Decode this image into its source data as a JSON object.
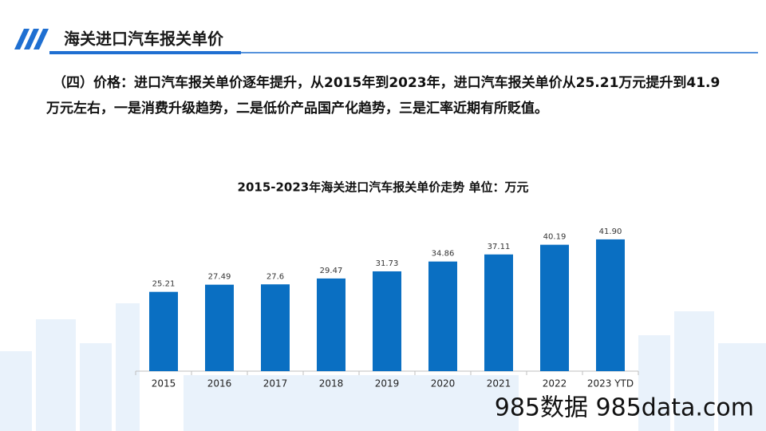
{
  "header": {
    "title": "海关进口汽车报关单价"
  },
  "paragraph": "（四）价格：进口汽车报关单价逐年提升，从2015年到2023年，进口汽车报关单价从25.21万元提升到41.9万元左右，一是消费升级趋势，二是低价产品国产化趋势，三是汇率近期有所贬值。",
  "chart_data": {
    "type": "bar",
    "title": "2015-2023年海关进口汽车报关单价走势  单位：万元",
    "categories": [
      "2015",
      "2016",
      "2017",
      "2018",
      "2019",
      "2020",
      "2021",
      "2022",
      "2023 YTD"
    ],
    "values": [
      25.21,
      27.49,
      27.6,
      29.47,
      31.73,
      34.86,
      37.11,
      40.19,
      41.9
    ],
    "value_labels": [
      "25.21",
      "27.49",
      "27.6",
      "29.47",
      "31.73",
      "34.86",
      "37.11",
      "40.19",
      "41.90"
    ],
    "color": "#0a6fc2"
  },
  "watermark": "985数据 985data.com"
}
